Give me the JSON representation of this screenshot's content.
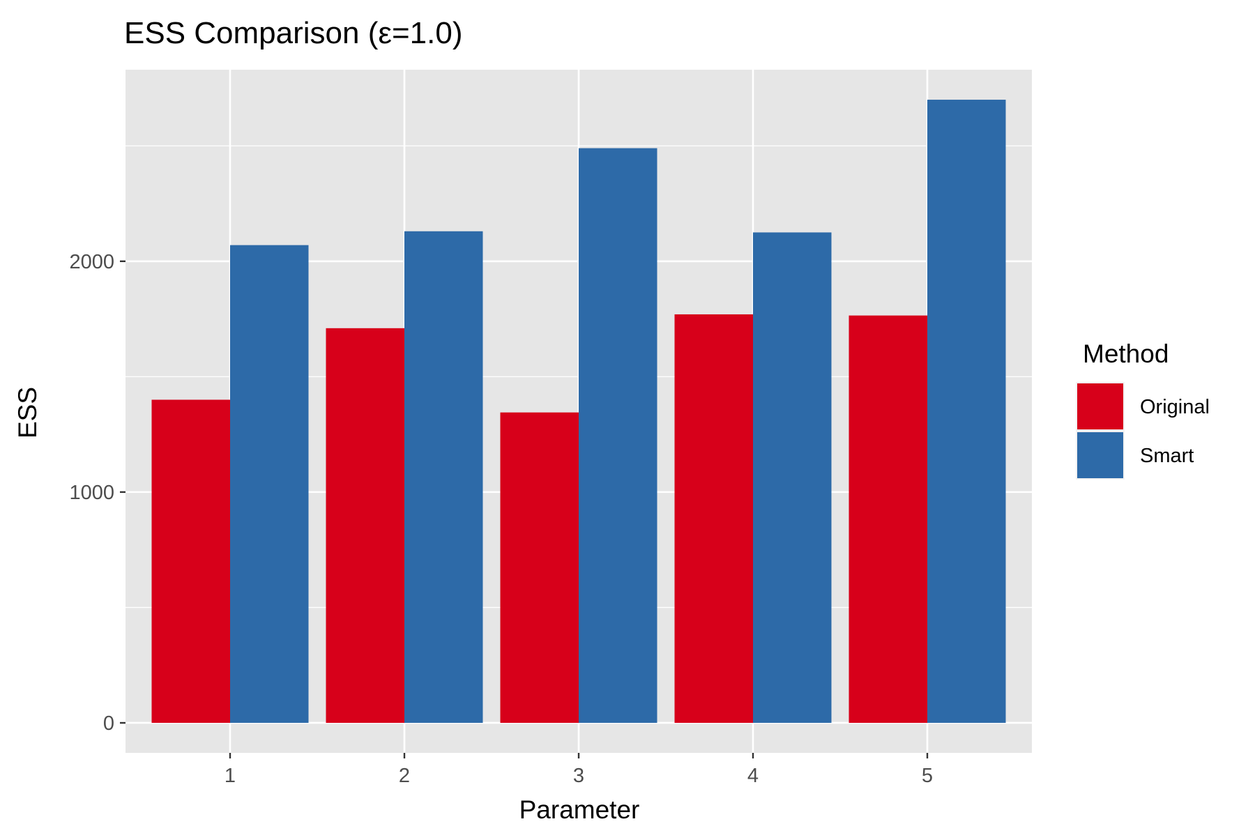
{
  "chart_data": {
    "type": "bar",
    "title": "ESS Comparison (ε=1.0)",
    "xlabel": "Parameter",
    "ylabel": "ESS",
    "categories": [
      "1",
      "2",
      "3",
      "4",
      "5"
    ],
    "series": [
      {
        "name": "Original",
        "color": "#D7001A",
        "values": [
          1400,
          1710,
          1345,
          1770,
          1765
        ]
      },
      {
        "name": "Smart",
        "color": "#2D6AA8",
        "values": [
          2070,
          2130,
          2490,
          2125,
          2700
        ]
      }
    ],
    "yticks": [
      0,
      1000,
      2000
    ],
    "yticks_labels": [
      "0",
      "1000",
      "2000"
    ],
    "ylim": [
      -130,
      2830
    ],
    "grid": true,
    "legend": {
      "title": "Method",
      "position": "right"
    },
    "colors": {
      "panel_background": "#E6E6E6",
      "grid": "#FFFFFF",
      "tick_label": "#4D4D4D"
    }
  }
}
